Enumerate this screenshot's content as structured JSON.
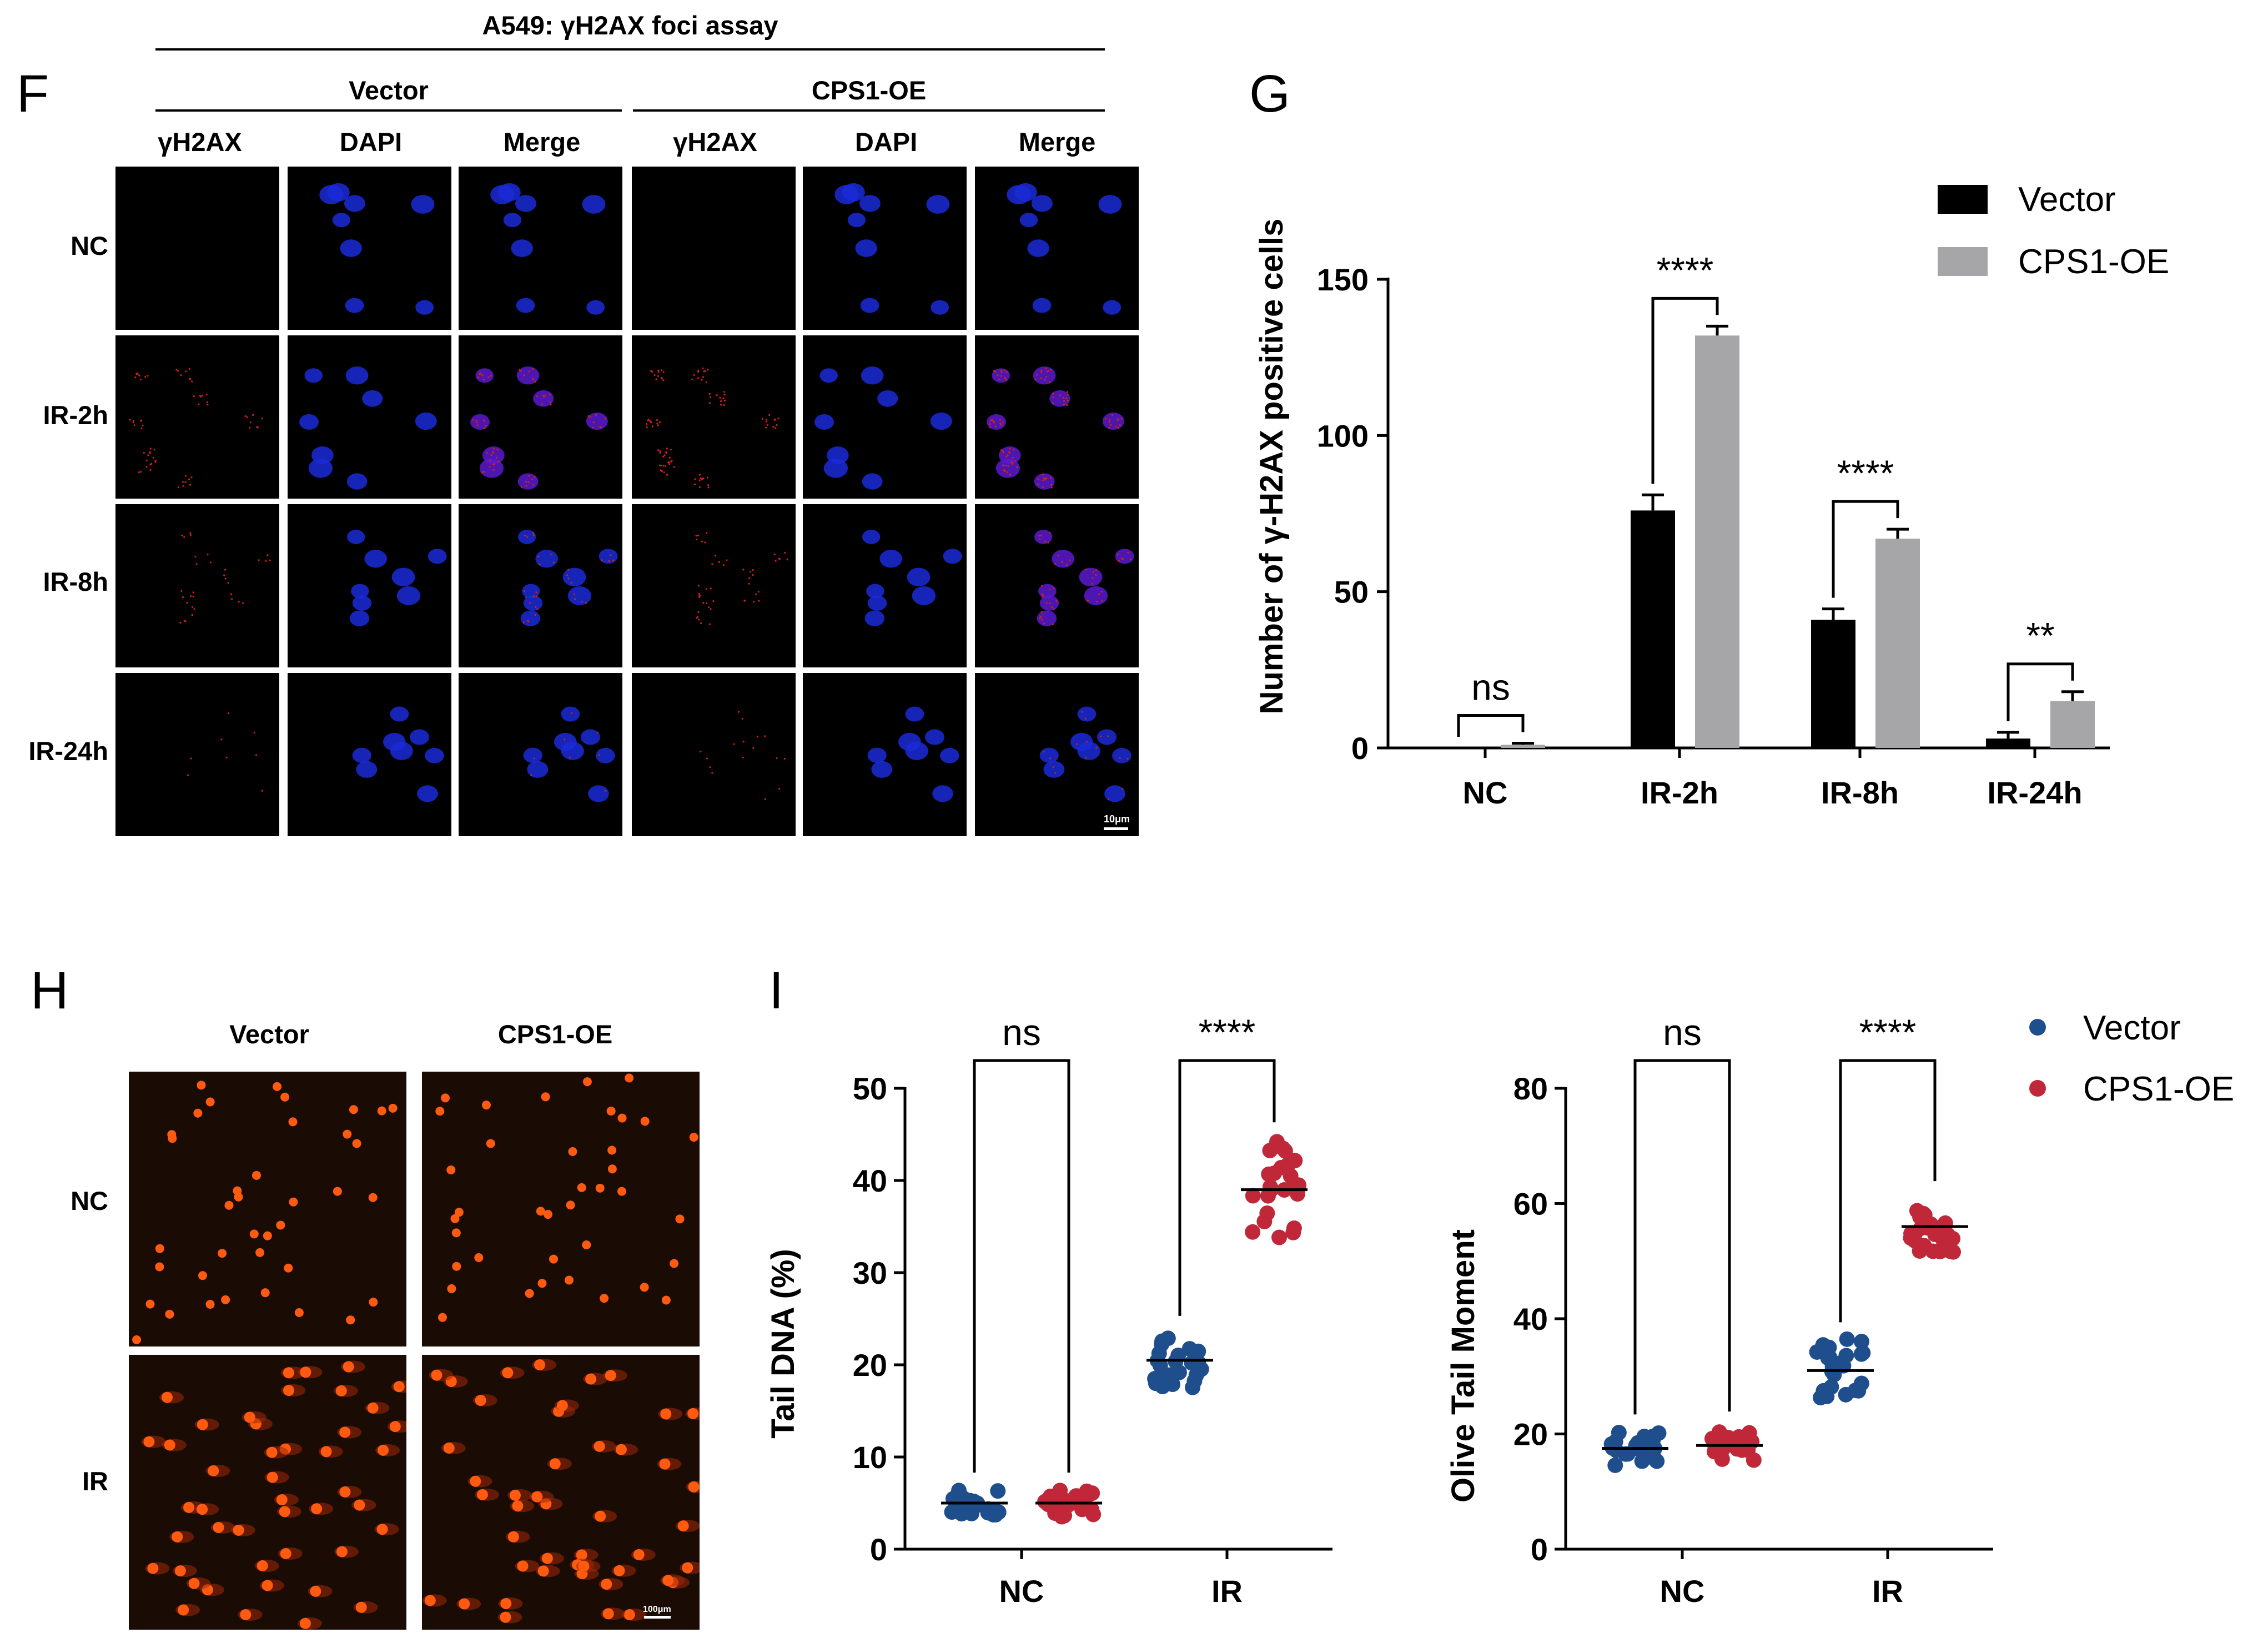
{
  "panel_letters": {
    "f": "F",
    "g": "G",
    "h": "H",
    "i": "I"
  },
  "panel_f": {
    "title": "A549: γH2AX foci assay",
    "groups": [
      "Vector",
      "CPS1-OE"
    ],
    "channels": [
      "γH2AX",
      "DAPI",
      "Merge",
      "γH2AX",
      "DAPI",
      "Merge"
    ],
    "rows": [
      "NC",
      "IR-2h",
      "IR-8h",
      "IR-24h"
    ],
    "scale_bar": "10μm"
  },
  "panel_h": {
    "columns": [
      "Vector",
      "CPS1-OE"
    ],
    "rows": [
      "NC",
      "IR"
    ],
    "scale_bar": "100μm"
  },
  "colors": {
    "vector_bar": "#000000",
    "cps1_bar": "#a6a6a8",
    "vector_dot": "#1f4e8c",
    "cps1_dot": "#c0283a",
    "nucleus": "#1a2ad8",
    "foci": "#d0201a",
    "comet": "#ff5a10"
  },
  "chart_data": [
    {
      "type": "bar",
      "panel": "G",
      "title": "",
      "ylabel": "Number of γ-H2AX positive cells",
      "xlabel": "",
      "categories": [
        "NC",
        "IR-2h",
        "IR-8h",
        "IR-24h"
      ],
      "ylim": [
        0,
        150
      ],
      "yticks": [
        0,
        50,
        100,
        150
      ],
      "series": [
        {
          "name": "Vector",
          "values": [
            0,
            76,
            41,
            3
          ],
          "errors": [
            0,
            5,
            3.5,
            2
          ]
        },
        {
          "name": "CPS1-OE",
          "values": [
            1,
            132,
            67,
            15
          ],
          "errors": [
            0.5,
            3,
            3,
            3
          ]
        }
      ],
      "significance": [
        "ns",
        "****",
        "****",
        "**"
      ],
      "legend": "top-right"
    },
    {
      "type": "scatter",
      "panel": "I-left",
      "ylabel": "Tail DNA  (%)",
      "categories": [
        "NC",
        "IR"
      ],
      "ylim": [
        0,
        50
      ],
      "yticks": [
        0,
        10,
        20,
        30,
        40,
        50
      ],
      "series": [
        {
          "name": "Vector",
          "means": [
            5,
            20.5
          ],
          "spread": [
            1.5,
            3
          ]
        },
        {
          "name": "CPS1-OE",
          "means": [
            5,
            39
          ],
          "spread": [
            1.5,
            5.5
          ]
        }
      ],
      "significance": [
        "ns",
        "****"
      ]
    },
    {
      "type": "scatter",
      "panel": "I-right",
      "ylabel": "Olive Tail Moment",
      "categories": [
        "NC",
        "IR"
      ],
      "ylim": [
        0,
        80
      ],
      "yticks": [
        0,
        20,
        40,
        60,
        80
      ],
      "series": [
        {
          "name": "Vector",
          "means": [
            17.5,
            31
          ],
          "spread": [
            3,
            5.5
          ]
        },
        {
          "name": "CPS1-OE",
          "means": [
            18,
            56
          ],
          "spread": [
            3,
            5
          ]
        }
      ],
      "significance": [
        "ns",
        "****"
      ],
      "legend": [
        "Vector",
        "CPS1-OE"
      ]
    }
  ]
}
